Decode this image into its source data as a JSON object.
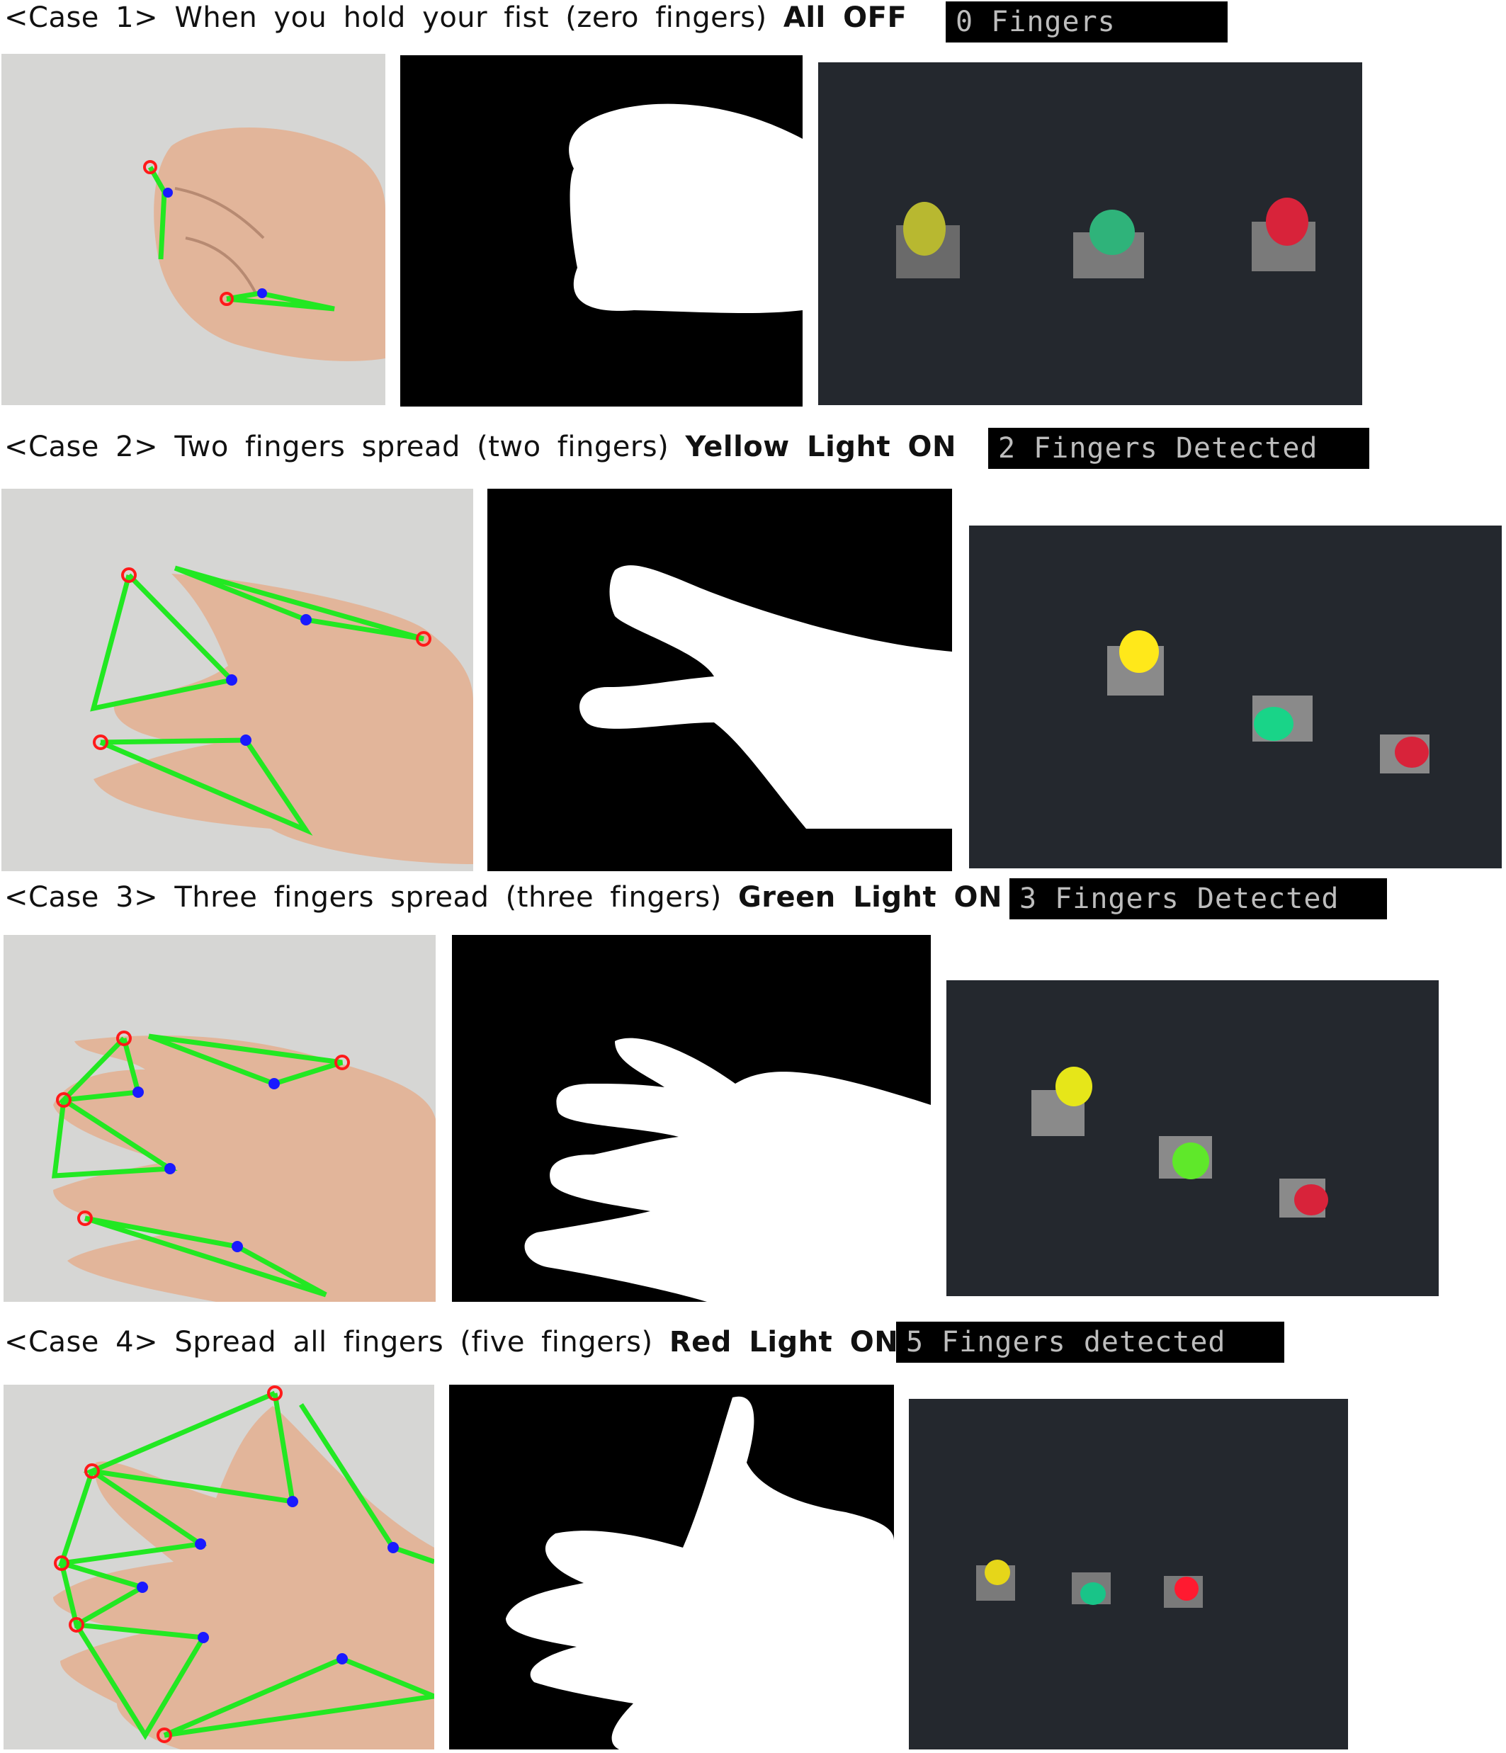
{
  "cases": [
    {
      "label": "<Case 1>",
      "description": "When you hold your fist (zero fingers)",
      "result": "All OFF",
      "badge": "0 Fingers"
    },
    {
      "label": "<Case 2>",
      "description": "Two fingers spread (two fingers)",
      "result": "Yellow Light ON",
      "badge": "2 Fingers Detected"
    },
    {
      "label": "<Case 3>",
      "description": "Three fingers spread (three fingers)",
      "result": "Green Light ON",
      "badge": "3 Fingers Detected"
    },
    {
      "label": "<Case 4>",
      "description": "Spread all fingers (five fingers)",
      "result": "Red Light ON",
      "badge": "5 Fingers detected"
    }
  ],
  "colors": {
    "skeleton_line": "#22e822",
    "fingertip_marker": "#ff1a1a",
    "joint_marker": "#1a1aff",
    "led_yellow": "#e6e619",
    "led_green": "#19d488",
    "led_red": "#ff1a30",
    "board_background": "#24282e"
  }
}
